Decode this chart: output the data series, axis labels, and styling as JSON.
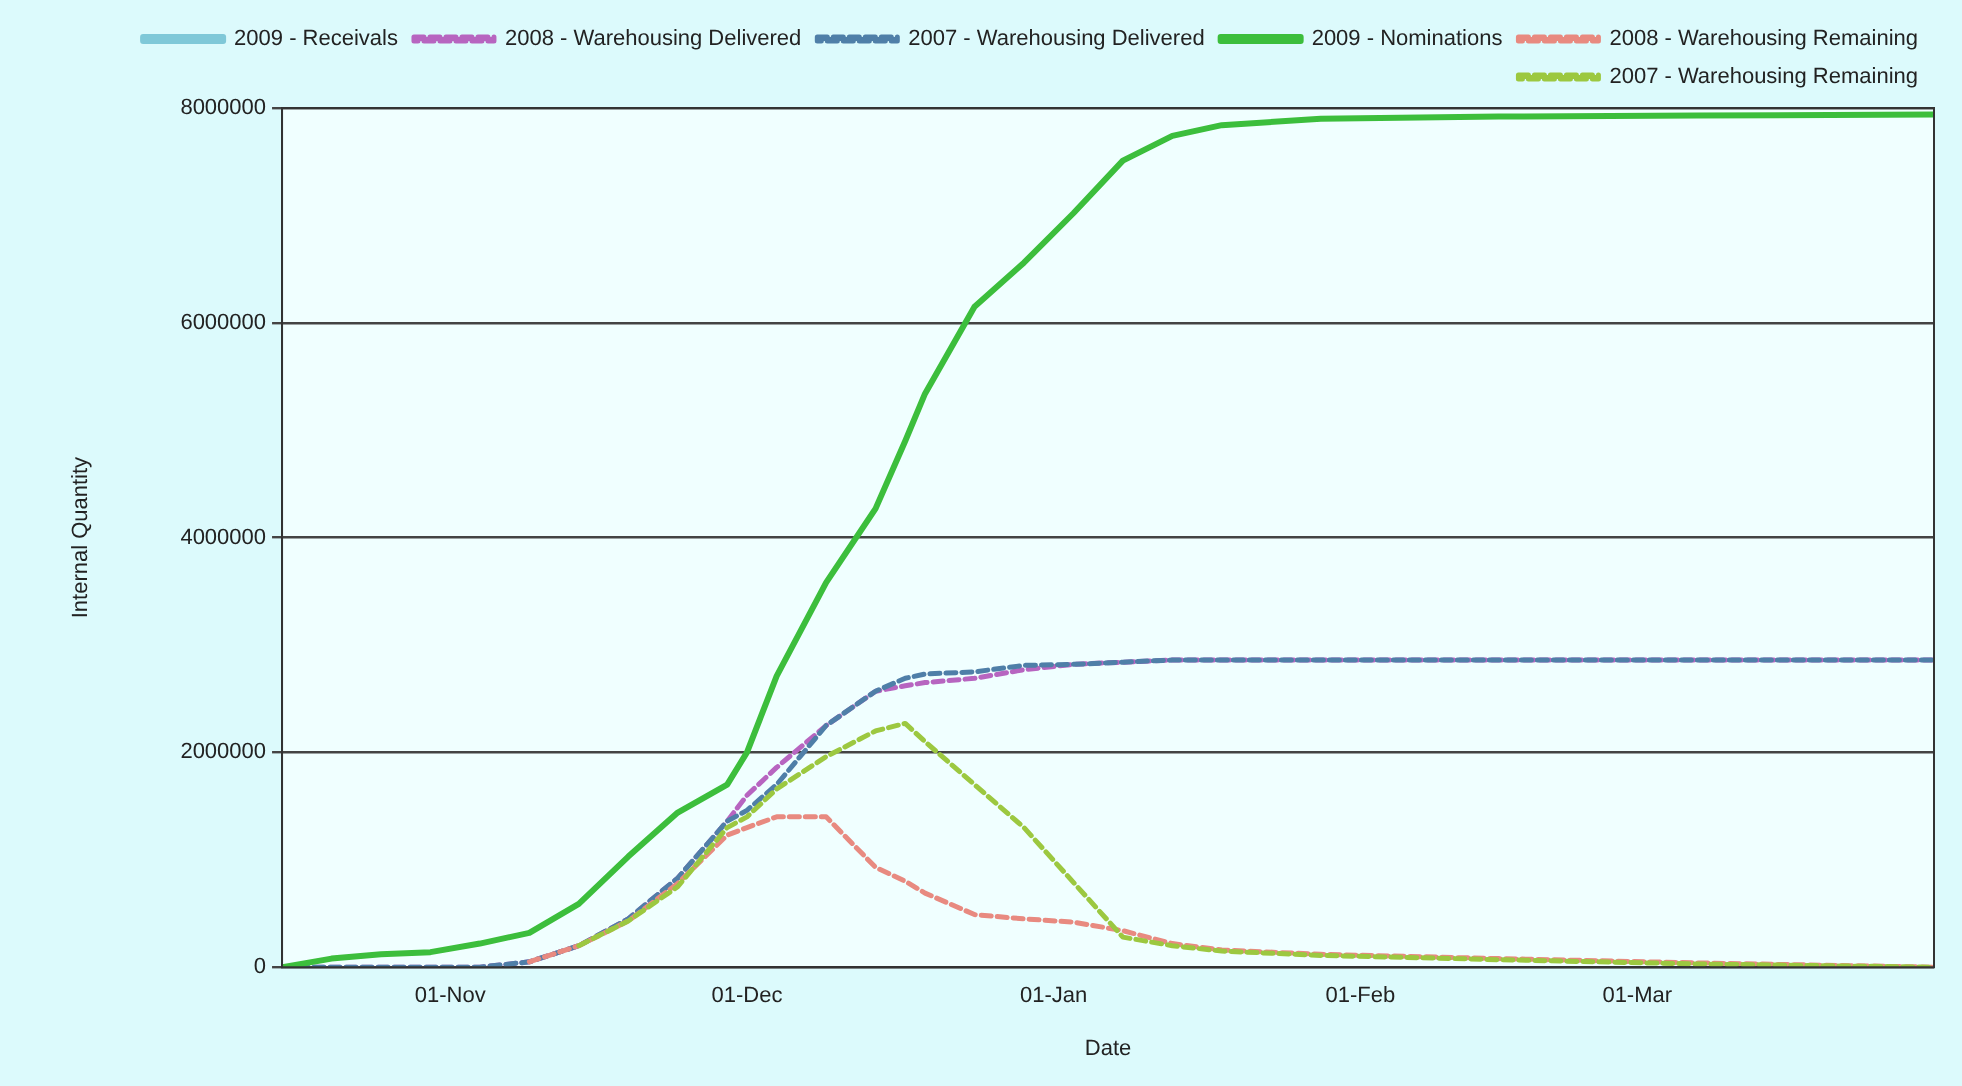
{
  "chart_data": {
    "type": "line",
    "xlabel": "Date",
    "ylabel": "Internal Quantity",
    "x": [
      "2008-10-15",
      "2008-10-20",
      "2008-10-25",
      "2008-10-30",
      "2008-11-04",
      "2008-11-09",
      "2008-11-14",
      "2008-11-19",
      "2008-11-24",
      "2008-11-29",
      "2008-12-01",
      "2008-12-04",
      "2008-12-09",
      "2008-12-14",
      "2008-12-17",
      "2008-12-19",
      "2008-12-24",
      "2008-12-29",
      "2009-01-03",
      "2009-01-08",
      "2009-01-13",
      "2009-01-18",
      "2009-01-28",
      "2009-02-15",
      "2009-03-07",
      "2009-03-31"
    ],
    "series": [
      {
        "name": "2009 - Receivals",
        "color": "#7fc8d8",
        "line_style": "solid",
        "values": [
          null,
          null,
          null,
          null,
          null,
          null,
          null,
          null,
          null,
          null,
          null,
          null,
          null,
          null,
          null,
          null,
          null,
          null,
          null,
          null,
          null,
          null,
          null,
          null,
          null,
          null
        ]
      },
      {
        "name": "2008 - Warehousing Delivered",
        "color": "#b765c0",
        "line_style": "dashed",
        "values": [
          0,
          0,
          0,
          0,
          0,
          50000,
          200000,
          450000,
          830000,
          1360000,
          1600000,
          1860000,
          2250000,
          2570000,
          2620000,
          2650000,
          2690000,
          2770000,
          2820000,
          2840000,
          2860000,
          2860000,
          2860000,
          2860000,
          2860000,
          2860000
        ]
      },
      {
        "name": "2007 - Warehousing Delivered",
        "color": "#4f7fa8",
        "line_style": "dashed",
        "values": [
          0,
          0,
          0,
          0,
          0,
          50000,
          200000,
          450000,
          830000,
          1360000,
          1460000,
          1700000,
          2250000,
          2570000,
          2690000,
          2730000,
          2750000,
          2810000,
          2820000,
          2840000,
          2860000,
          2860000,
          2860000,
          2860000,
          2860000,
          2860000
        ]
      },
      {
        "name": "2009 - Nominations",
        "color": "#3cbe3c",
        "line_style": "solid",
        "values": [
          0,
          80000,
          120000,
          140000,
          220000,
          320000,
          590000,
          1030000,
          1440000,
          1700000,
          2000000,
          2710000,
          3580000,
          4270000,
          4900000,
          5340000,
          6150000,
          6560000,
          7020000,
          7510000,
          7740000,
          7840000,
          7900000,
          7920000,
          7930000,
          7940000
        ]
      },
      {
        "name": "2008 - Warehousing Remaining",
        "color": "#e88a80",
        "line_style": "dashed",
        "values": [
          null,
          null,
          null,
          null,
          null,
          50000,
          200000,
          430000,
          780000,
          1230000,
          1300000,
          1400000,
          1400000,
          930000,
          800000,
          690000,
          490000,
          450000,
          420000,
          340000,
          220000,
          160000,
          120000,
          80000,
          40000,
          0
        ]
      },
      {
        "name": "2007 - Warehousing Remaining",
        "color": "#9cc840",
        "line_style": "dashed",
        "values": [
          null,
          null,
          null,
          null,
          null,
          null,
          200000,
          430000,
          750000,
          1300000,
          1400000,
          1660000,
          1960000,
          2200000,
          2270000,
          2100000,
          1700000,
          1300000,
          790000,
          280000,
          200000,
          150000,
          110000,
          70000,
          30000,
          0
        ]
      }
    ],
    "xlim": [
      "2008-10-15",
      "2009-03-31"
    ],
    "xticks": [
      {
        "value": "2008-11-01",
        "label": "01-Nov"
      },
      {
        "value": "2008-12-01",
        "label": "01-Dec"
      },
      {
        "value": "2009-01-01",
        "label": "01-Jan"
      },
      {
        "value": "2009-02-01",
        "label": "01-Feb"
      },
      {
        "value": "2009-03-01",
        "label": "01-Mar"
      }
    ],
    "ylim": [
      0,
      8000000
    ],
    "yticks": [
      0,
      2000000,
      4000000,
      6000000,
      8000000
    ],
    "grid": "y",
    "legend": "top",
    "marker": "none"
  }
}
